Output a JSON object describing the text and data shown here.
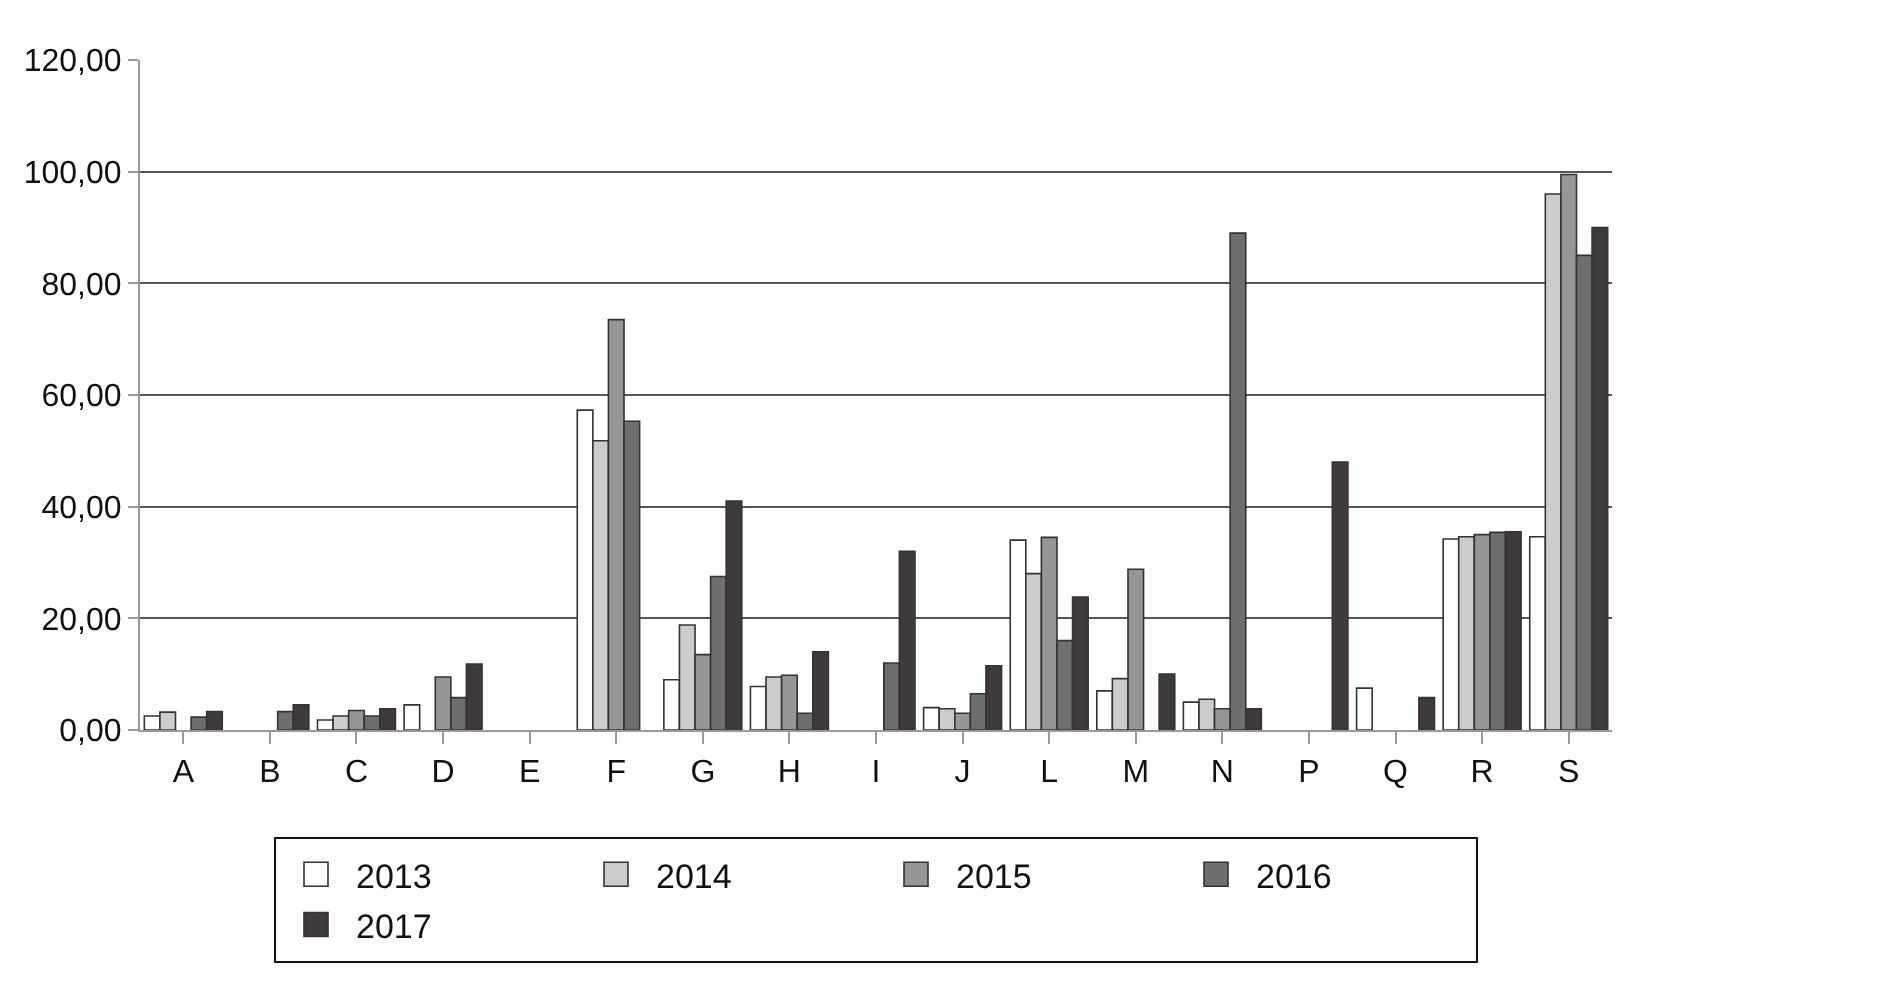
{
  "chart_data": {
    "type": "bar",
    "categories": [
      "A",
      "B",
      "C",
      "D",
      "E",
      "F",
      "G",
      "H",
      "I",
      "J",
      "L",
      "M",
      "N",
      "P",
      "Q",
      "R",
      "S"
    ],
    "series": [
      {
        "name": "2013",
        "color": "#ffffff",
        "values": [
          2.5,
          null,
          1.8,
          4.5,
          null,
          57.3,
          9,
          7.8,
          null,
          4,
          34,
          7,
          5,
          null,
          7.5,
          34.2,
          34.6
        ]
      },
      {
        "name": "2014",
        "color": "#cccccc",
        "values": [
          3.2,
          null,
          2.5,
          null,
          null,
          51.8,
          18.8,
          9.5,
          null,
          3.8,
          28,
          9.2,
          5.5,
          null,
          null,
          34.6,
          96
        ]
      },
      {
        "name": "2015",
        "color": "#969696",
        "values": [
          null,
          null,
          3.5,
          9.5,
          null,
          73.5,
          13.5,
          9.8,
          null,
          3,
          34.5,
          28.8,
          3.8,
          null,
          null,
          35,
          99.5
        ]
      },
      {
        "name": "2016",
        "color": "#6e6e6e",
        "values": [
          2.3,
          3.3,
          2.5,
          5.8,
          null,
          55.3,
          27.5,
          3,
          12,
          6.5,
          16,
          null,
          89,
          null,
          null,
          35.4,
          85
        ]
      },
      {
        "name": "2017",
        "color": "#403a3c",
        "values": [
          3.3,
          4.5,
          3.8,
          11.8,
          null,
          null,
          41,
          14,
          32,
          11.5,
          23.8,
          10,
          3.8,
          48,
          5.8,
          35.5,
          90
        ]
      }
    ],
    "ylim": [
      0,
      120
    ],
    "yticks": [
      {
        "value": 0,
        "label": "0,00"
      },
      {
        "value": 20,
        "label": "20,00"
      },
      {
        "value": 40,
        "label": "40,00"
      },
      {
        "value": 60,
        "label": "60,00"
      },
      {
        "value": 80,
        "label": "80,00"
      },
      {
        "value": 100,
        "label": "100,00"
      },
      {
        "value": 120,
        "label": "120,00"
      }
    ],
    "grid": "y",
    "legend": "bottom"
  }
}
